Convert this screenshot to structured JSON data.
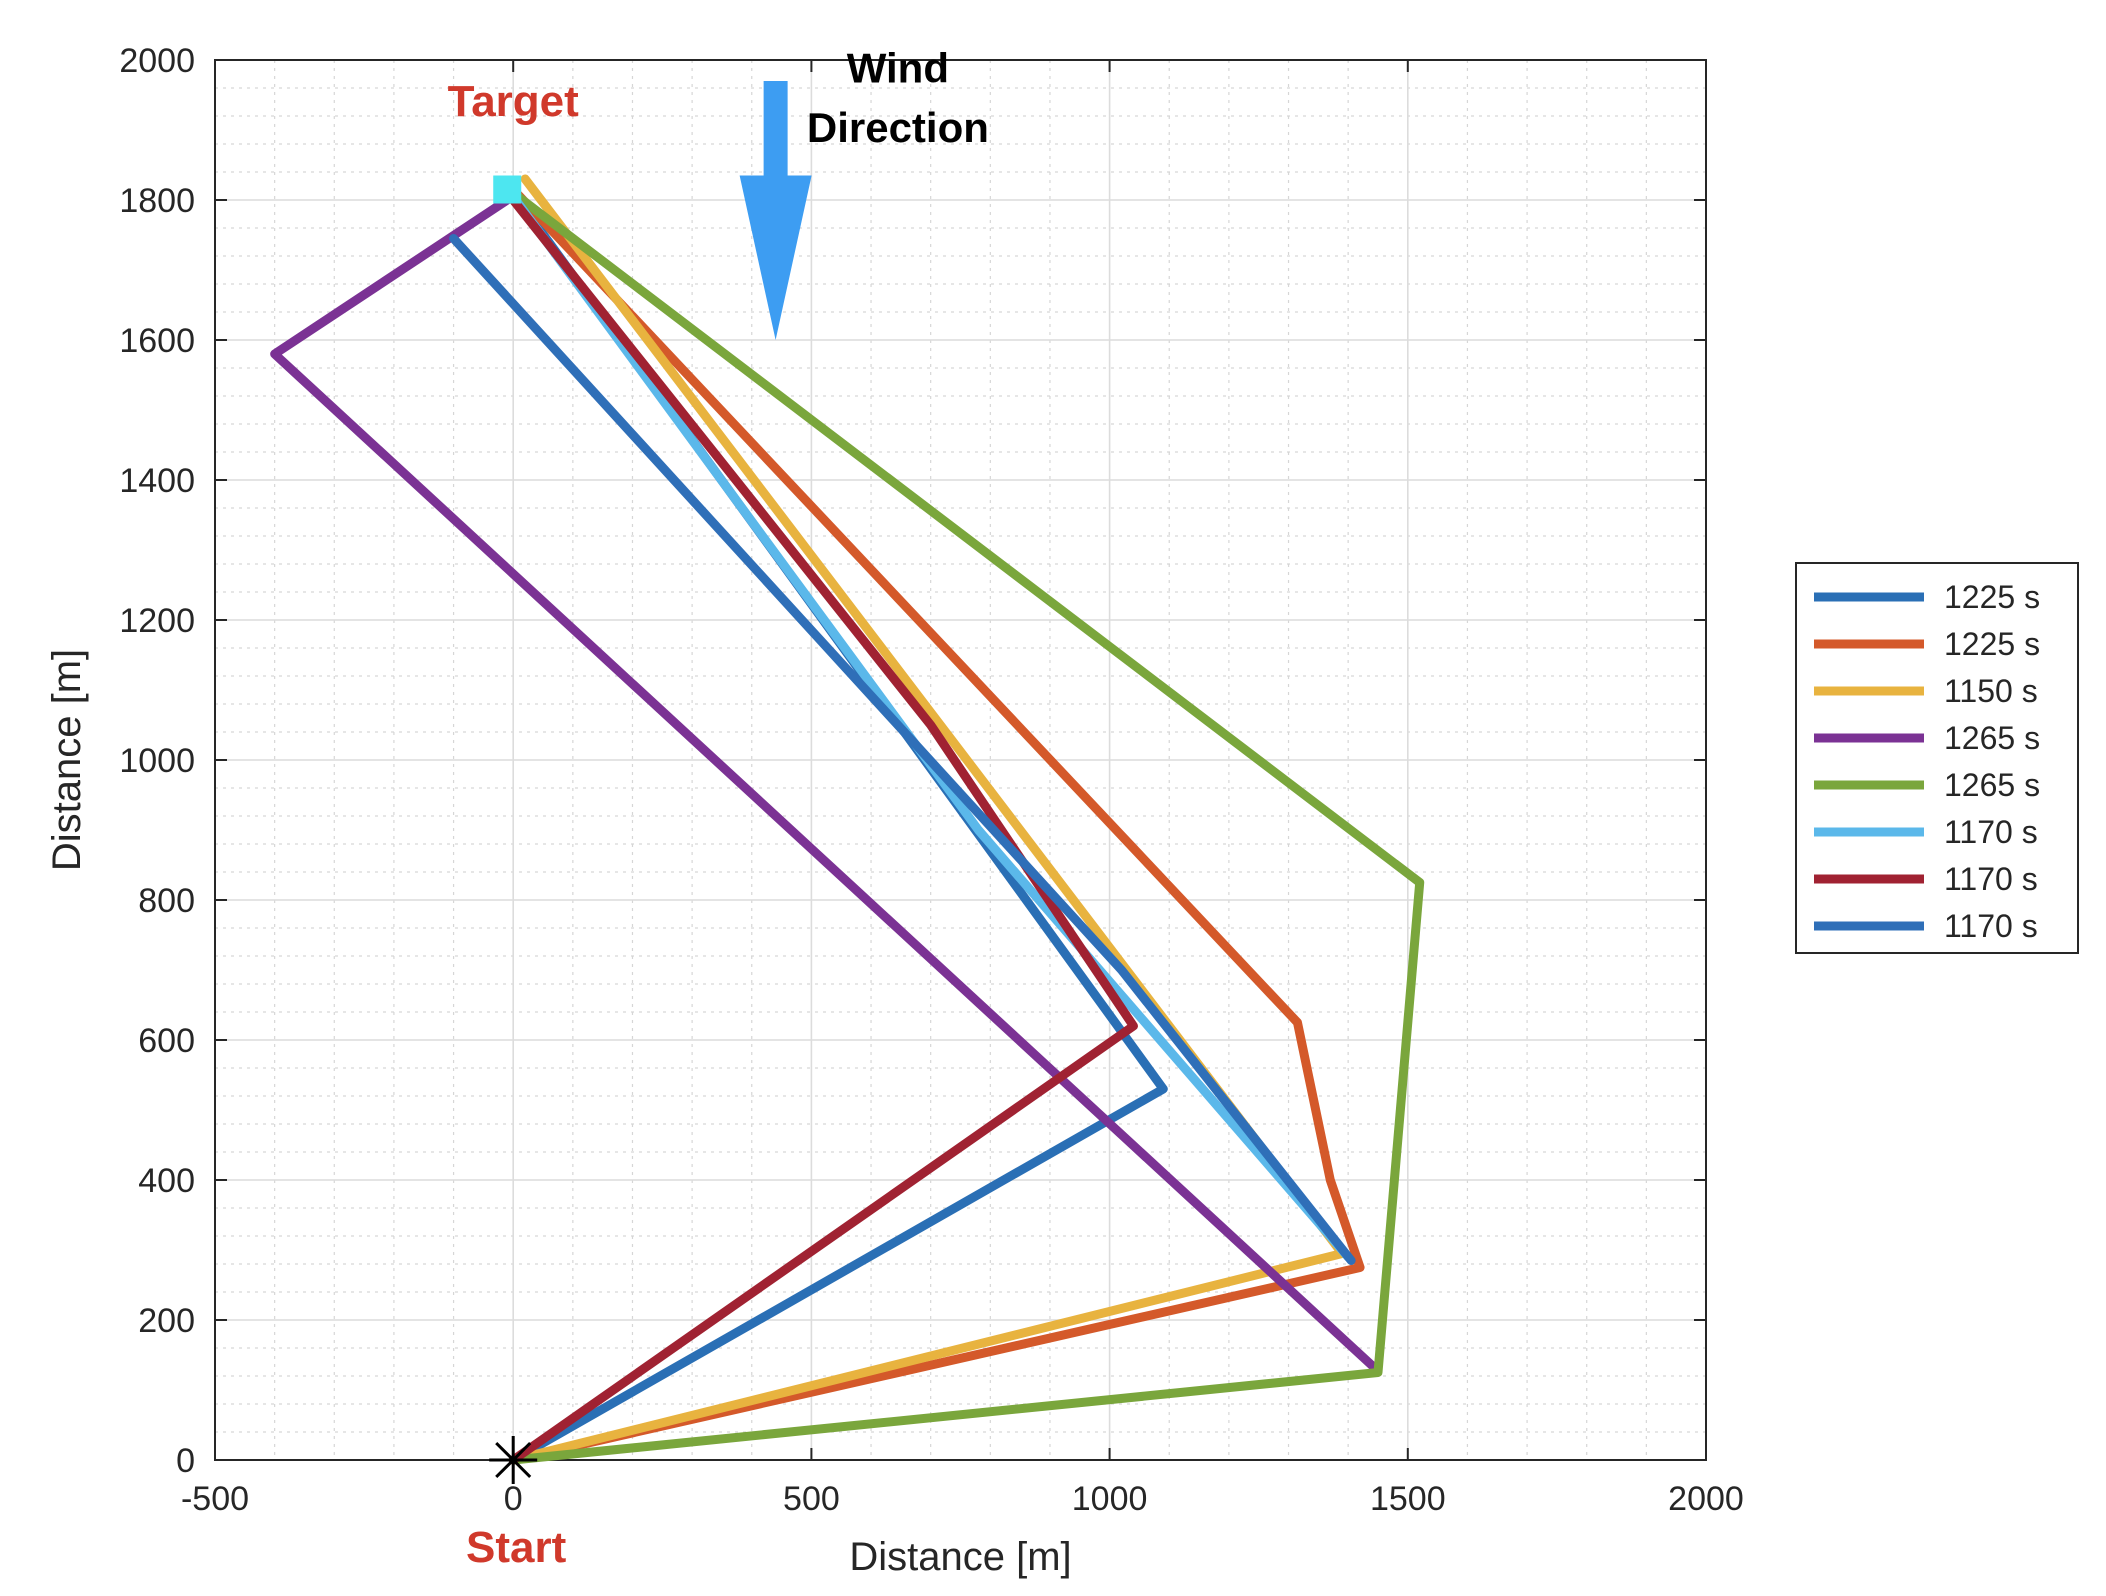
{
  "chart_data": {
    "type": "line",
    "xlabel": "Distance [m]",
    "ylabel": "Distance [m]",
    "xlim": [
      -500,
      2000
    ],
    "ylim": [
      0,
      2000
    ],
    "xticks": [
      "-500",
      "0",
      "500",
      "1000",
      "1500",
      "2000"
    ],
    "yticks": [
      "0",
      "200",
      "400",
      "600",
      "800",
      "1000",
      "1200",
      "1400",
      "1600",
      "1800",
      "2000"
    ],
    "grid": true,
    "minor_grid": true,
    "legend_position": "outside-right",
    "series": [
      {
        "name": "1225 s",
        "color": "#2a6fb5",
        "points": [
          [
            0,
            0
          ],
          [
            1090,
            530
          ],
          [
            775,
            900
          ],
          [
            0,
            1810
          ]
        ]
      },
      {
        "name": "1225 s",
        "color": "#d4592a",
        "points": [
          [
            0,
            0
          ],
          [
            1420,
            275
          ],
          [
            1370,
            400
          ],
          [
            1315,
            625
          ],
          [
            0,
            1815
          ]
        ]
      },
      {
        "name": "1150 s",
        "color": "#e8b33f",
        "points": [
          [
            0,
            0
          ],
          [
            1390,
            295
          ],
          [
            20,
            1830
          ]
        ]
      },
      {
        "name": "1265 s",
        "color": "#7b3294",
        "points": [
          [
            1440,
            135
          ],
          [
            -400,
            1580
          ],
          [
            -10,
            1800
          ]
        ]
      },
      {
        "name": "1265 s",
        "color": "#7aa63c",
        "points": [
          [
            0,
            0
          ],
          [
            1450,
            125
          ],
          [
            1520,
            825
          ],
          [
            0,
            1810
          ]
        ]
      },
      {
        "name": "1170 s",
        "color": "#5bb8ea",
        "points": [
          [
            1400,
            290
          ],
          [
            780,
            900
          ],
          [
            0,
            1805
          ]
        ]
      },
      {
        "name": "1170 s",
        "color": "#a02232",
        "points": [
          [
            0,
            0
          ],
          [
            1040,
            620
          ],
          [
            700,
            1050
          ],
          [
            0,
            1800
          ]
        ]
      },
      {
        "name": "1170 s",
        "color": "#2f6fb8",
        "points": [
          [
            1405,
            285
          ],
          [
            1020,
            700
          ],
          [
            -100,
            1745
          ]
        ]
      }
    ],
    "annotations": [
      {
        "text": "Target",
        "x": 0,
        "y": 1900
      },
      {
        "text": "Start",
        "x": 0,
        "y": -130
      },
      {
        "text": "Wind",
        "text2": "Direction"
      }
    ],
    "start_marker": {
      "x": 0,
      "y": 0,
      "symbol": "asterisk"
    },
    "target_marker": {
      "x": -10,
      "y": 1815,
      "color": "#4de6f0"
    },
    "wind_arrow": {
      "color": "#3d9df2",
      "direction": "down"
    }
  }
}
